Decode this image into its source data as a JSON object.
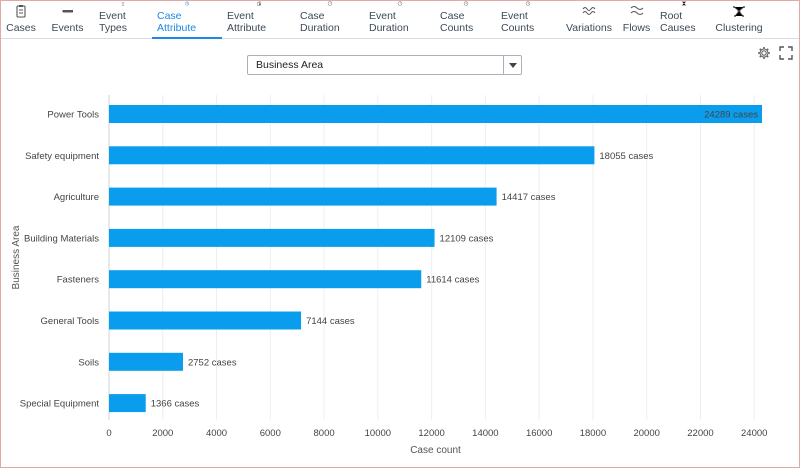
{
  "tabs": [
    {
      "label": "Cases",
      "icon": "clipboard-icon",
      "active": false
    },
    {
      "label": "Events",
      "icon": "events-icon",
      "active": false
    },
    {
      "label": "Event Types",
      "icon": "event-types-icon",
      "active": false
    },
    {
      "label": "Case Attribute",
      "icon": "pie-chart-icon",
      "active": true
    },
    {
      "label": "Event Attribute",
      "icon": "event-attribute-icon",
      "active": false
    },
    {
      "label": "Case Duration",
      "icon": "gauge-icon",
      "active": false
    },
    {
      "label": "Event Duration",
      "icon": "gauge-icon",
      "active": false
    },
    {
      "label": "Case Counts",
      "icon": "clock-icon",
      "active": false
    },
    {
      "label": "Event Counts",
      "icon": "clock-icon",
      "active": false
    },
    {
      "label": "Variations",
      "icon": "wave-icon",
      "active": false
    },
    {
      "label": "Flows",
      "icon": "flow-icon",
      "active": false
    },
    {
      "label": "Root Causes",
      "icon": "network-icon",
      "active": false
    },
    {
      "label": "Clustering",
      "icon": "cluster-icon",
      "active": false
    }
  ],
  "attribute_select": {
    "value": "Business Area"
  },
  "colors": {
    "accent": "#1e88e5",
    "bar": "#0b9ded"
  },
  "chart_data": {
    "type": "bar",
    "orientation": "horizontal",
    "categories": [
      "Power Tools",
      "Safety equipment",
      "Agriculture",
      "Building Materials",
      "Fasteners",
      "General Tools",
      "Soils",
      "Special Equipment"
    ],
    "values": [
      24289,
      18055,
      14417,
      12109,
      11614,
      7144,
      2752,
      1366
    ],
    "data_labels": [
      "24289 cases",
      "18055 cases",
      "14417 cases",
      "12109 cases",
      "11614 cases",
      "7144 cases",
      "2752 cases",
      "1366 cases"
    ],
    "x_ticks": [
      "0",
      "2000",
      "4000",
      "6000",
      "8000",
      "10000",
      "12000",
      "14000",
      "16000",
      "18000",
      "20000",
      "22000",
      "24000"
    ],
    "xlim": [
      0,
      24500
    ],
    "xlabel": "Case count",
    "ylabel": "Business Area",
    "grid": true
  }
}
